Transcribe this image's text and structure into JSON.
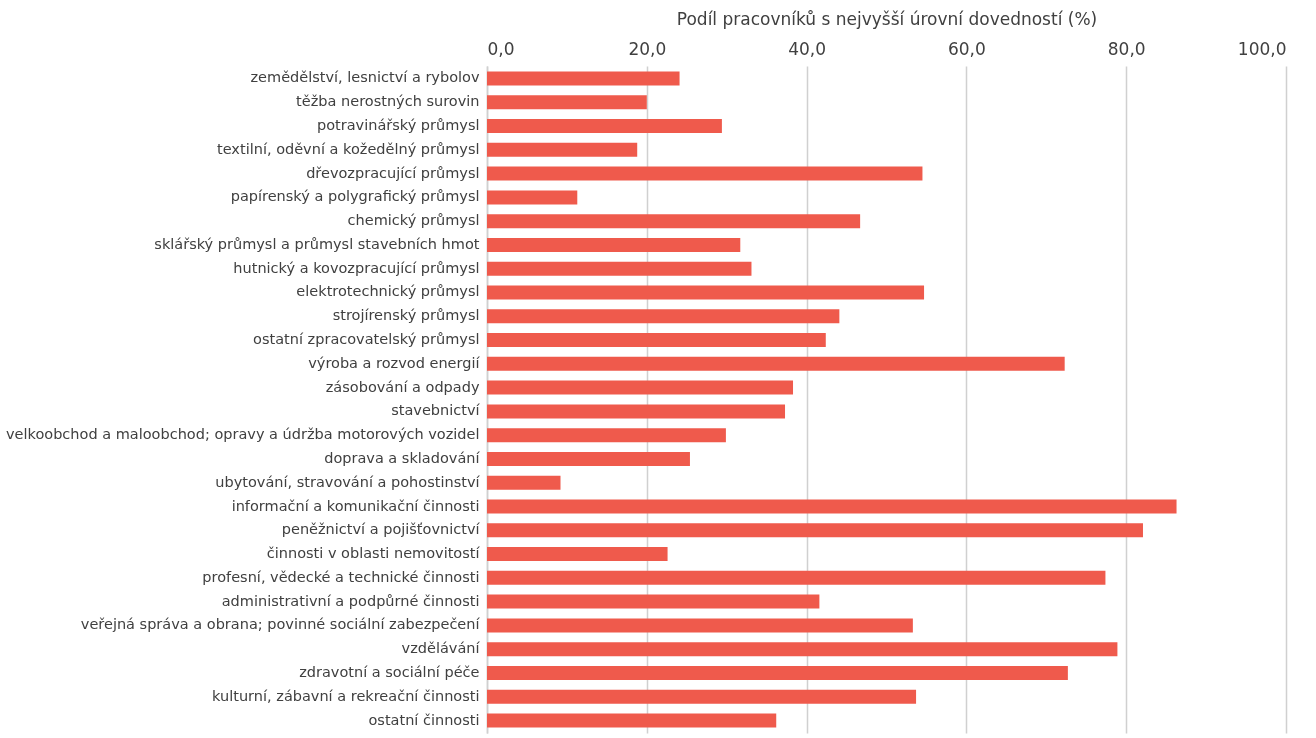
{
  "chart_data": {
    "type": "bar",
    "orientation": "horizontal",
    "xlabel": "Podíl pracovníků s nejvyšší úrovní dovedností (%)",
    "categories": [
      "zemědělství, lesnictví a rybolov",
      "těžba nerostných surovin",
      "potravinářský průmysl",
      "textilní, oděvní a kožedělný průmysl",
      "dřevozpracující průmysl",
      "papírenský a polygrafický průmysl",
      "chemický průmysl",
      "sklářský průmysl a průmysl stavebních hmot",
      "hutnický a kovozpracující průmysl",
      "elektrotechnický průmysl",
      "strojírenský průmysl",
      "ostatní zpracovatelský průmysl",
      "výroba a rozvod energií",
      "zásobování a odpady",
      "stavebnictví",
      "velkoobchod a maloobchod; opravy a údržba motorových vozidel",
      "doprava a skladování",
      "ubytování, stravování a pohostinství",
      "informační a komunikační činnosti",
      "peněžnictví a pojišťovnictví",
      "činnosti v oblasti nemovitostí",
      "profesní, vědecké a technické činnosti",
      "administrativní a podpůrné činnosti",
      "veřejná správa a obrana; povinné sociální zabezpečení",
      "vzdělávání",
      "zdravotní a sociální péče",
      "kulturní, zábavní a rekreační činnosti",
      "ostatní činnosti"
    ],
    "values": [
      24.1,
      20.0,
      29.4,
      18.8,
      54.5,
      11.3,
      46.7,
      31.7,
      33.1,
      54.7,
      44.1,
      42.4,
      72.3,
      38.3,
      37.3,
      29.9,
      25.4,
      9.2,
      86.3,
      82.1,
      22.6,
      77.4,
      41.6,
      53.3,
      78.9,
      72.7,
      53.7,
      36.2
    ],
    "color": "#ef5a4c",
    "xlim": [
      0,
      100
    ],
    "xticks": [
      {
        "value": 0,
        "label": "0,0"
      },
      {
        "value": 20,
        "label": "20,0"
      },
      {
        "value": 40,
        "label": "40,0"
      },
      {
        "value": 60,
        "label": "60,0"
      },
      {
        "value": 80,
        "label": "80,0"
      },
      {
        "value": 100,
        "label": "100,0"
      }
    ],
    "grid": "x"
  }
}
